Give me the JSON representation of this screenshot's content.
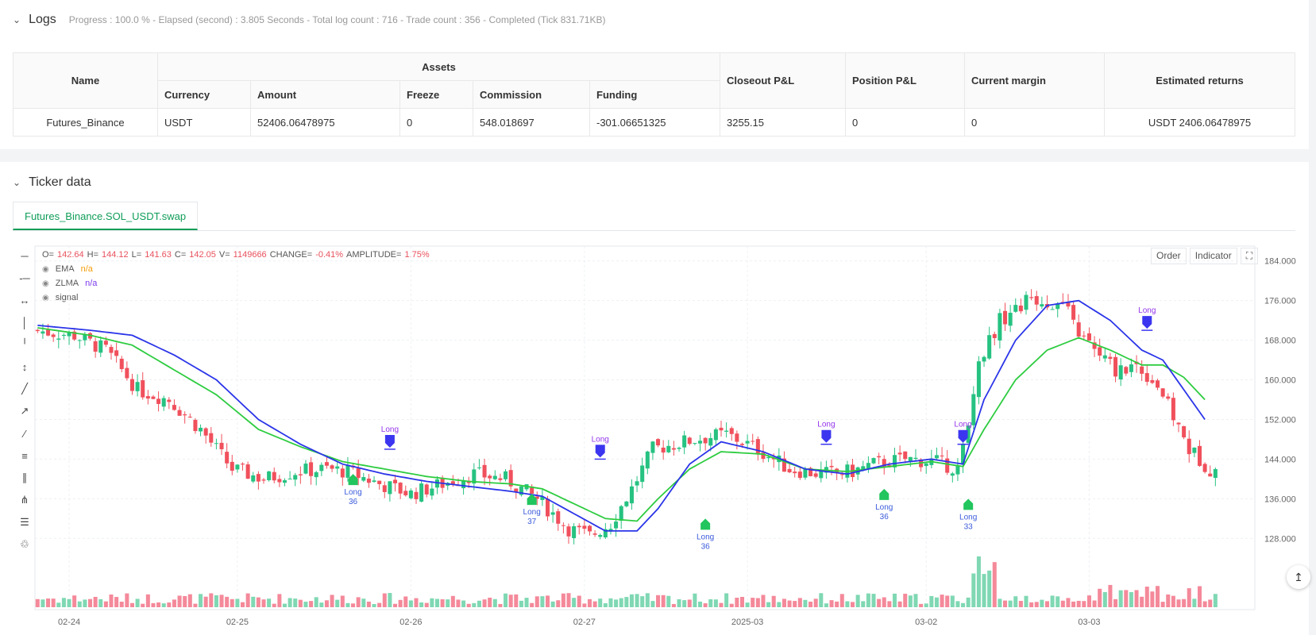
{
  "logs": {
    "title": "Logs",
    "meta": "Progress : 100.0 % - Elapsed (second) : 3.805  Seconds - Total log count : 716 - Trade count : 356 - Completed (Tick 831.71KB)"
  },
  "assets_table": {
    "headers": {
      "name": "Name",
      "assets": "Assets",
      "currency": "Currency",
      "amount": "Amount",
      "freeze": "Freeze",
      "commission": "Commission",
      "funding": "Funding",
      "closeout": "Closeout P&L",
      "position": "Position P&L",
      "margin": "Current margin",
      "returns": "Estimated returns"
    },
    "row": {
      "name": "Futures_Binance",
      "currency": "USDT",
      "amount": "52406.06478975",
      "freeze": "0",
      "commission": "548.018697",
      "funding": "-301.06651325",
      "closeout": "3255.15",
      "position": "0",
      "margin": "0",
      "returns": "USDT 2406.06478975"
    }
  },
  "ticker": {
    "title": "Ticker data",
    "tab": "Futures_Binance.SOL_USDT.swap"
  },
  "chart_ui": {
    "ohlc": {
      "o_label": "O=",
      "o": "142.64",
      "h_label": "H=",
      "h": "144.12",
      "l_label": "L=",
      "l": "141.63",
      "c_label": "C=",
      "c": "142.05",
      "v_label": "V=",
      "v": "1149666",
      "change_label": "CHANGE=",
      "change": "-0.41%",
      "amp_label": "AMPLITUDE=",
      "amp": "1.75%"
    },
    "indicators": [
      {
        "name": "EMA",
        "value": "n/a",
        "color": "#f59e0b"
      },
      {
        "name": "ZLMA",
        "value": "n/a",
        "color": "#7c3aed"
      },
      {
        "name": "signal",
        "value": "",
        "color": "#555555"
      }
    ],
    "buttons": {
      "order": "Order",
      "indicator": "Indicator"
    },
    "toolbar_icons": [
      "horizontal-line-icon",
      "horizontal-ray-icon",
      "extended-line-icon",
      "vertical-line-icon",
      "vertical-ray-icon",
      "vertical-segment-icon",
      "trend-line-icon",
      "ray-icon",
      "segment-icon",
      "measure-icon",
      "parallel-channel-icon",
      "pitchfork-icon",
      "layers-icon",
      "trash-icon"
    ]
  },
  "chart_data": {
    "type": "candlestick",
    "y_ticks": [
      "184.000",
      "176.000",
      "168.000",
      "160.000",
      "152.000",
      "144.000",
      "136.000",
      "128.000"
    ],
    "ylim": [
      121,
      187
    ],
    "x_ticks": [
      "02-24",
      "02-25",
      "02-26",
      "02-27",
      "2025-03",
      "03-02",
      "03-03"
    ],
    "price_path": [
      [
        0,
        170
      ],
      [
        8,
        169
      ],
      [
        14,
        166
      ],
      [
        20,
        158
      ],
      [
        26,
        156
      ],
      [
        32,
        150
      ],
      [
        38,
        142
      ],
      [
        44,
        140
      ],
      [
        50,
        141.5
      ],
      [
        56,
        142
      ],
      [
        60,
        141.5
      ],
      [
        66,
        139
      ],
      [
        72,
        137
      ],
      [
        78,
        139
      ],
      [
        84,
        141
      ],
      [
        90,
        140
      ],
      [
        96,
        136
      ],
      [
        102,
        130
      ],
      [
        106,
        128.5
      ],
      [
        110,
        131
      ],
      [
        114,
        138
      ],
      [
        118,
        146
      ],
      [
        126,
        148
      ],
      [
        132,
        149
      ],
      [
        138,
        146
      ],
      [
        144,
        142
      ],
      [
        150,
        141
      ],
      [
        156,
        141.5
      ],
      [
        160,
        143
      ],
      [
        166,
        144
      ],
      [
        172,
        143.5
      ],
      [
        176,
        142
      ],
      [
        178,
        150
      ],
      [
        180,
        164
      ],
      [
        184,
        172
      ],
      [
        190,
        176.5
      ],
      [
        196,
        175
      ],
      [
        200,
        168
      ],
      [
        206,
        162
      ],
      [
        210,
        163
      ],
      [
        214,
        159
      ],
      [
        220,
        146
      ],
      [
        224,
        142
      ]
    ],
    "ema_path": [
      [
        0,
        170.5
      ],
      [
        10,
        169
      ],
      [
        18,
        167
      ],
      [
        26,
        162
      ],
      [
        34,
        157
      ],
      [
        42,
        150
      ],
      [
        50,
        146.5
      ],
      [
        58,
        143.5
      ],
      [
        66,
        142
      ],
      [
        74,
        140.5
      ],
      [
        82,
        139.5
      ],
      [
        90,
        139
      ],
      [
        96,
        138
      ],
      [
        102,
        135
      ],
      [
        108,
        132
      ],
      [
        114,
        131.5
      ],
      [
        118,
        136
      ],
      [
        124,
        142
      ],
      [
        130,
        145.5
      ],
      [
        138,
        145
      ],
      [
        146,
        142
      ],
      [
        154,
        141.5
      ],
      [
        162,
        142.5
      ],
      [
        170,
        143.5
      ],
      [
        176,
        142.5
      ],
      [
        180,
        150
      ],
      [
        186,
        160
      ],
      [
        192,
        166
      ],
      [
        198,
        168.5
      ],
      [
        204,
        166
      ],
      [
        210,
        163
      ],
      [
        214,
        163
      ],
      [
        218,
        160.5
      ],
      [
        222,
        156
      ]
    ],
    "zlma_path": [
      [
        0,
        171
      ],
      [
        10,
        170
      ],
      [
        18,
        169
      ],
      [
        26,
        165
      ],
      [
        34,
        160
      ],
      [
        42,
        152
      ],
      [
        50,
        147
      ],
      [
        58,
        143
      ],
      [
        66,
        141
      ],
      [
        74,
        139.5
      ],
      [
        82,
        138.5
      ],
      [
        90,
        137.5
      ],
      [
        96,
        136.5
      ],
      [
        102,
        133
      ],
      [
        108,
        129.5
      ],
      [
        114,
        129.5
      ],
      [
        118,
        134
      ],
      [
        124,
        143
      ],
      [
        130,
        147.5
      ],
      [
        138,
        145.5
      ],
      [
        146,
        142
      ],
      [
        154,
        141
      ],
      [
        162,
        143
      ],
      [
        170,
        144
      ],
      [
        176,
        143
      ],
      [
        180,
        156
      ],
      [
        186,
        168
      ],
      [
        192,
        175
      ],
      [
        198,
        176
      ],
      [
        204,
        172
      ],
      [
        210,
        166
      ],
      [
        214,
        164
      ],
      [
        218,
        158
      ],
      [
        222,
        152
      ]
    ],
    "signals": [
      {
        "type": "buy",
        "label": "Long",
        "qty": "36",
        "bar": 60,
        "price": 141
      },
      {
        "type": "sell",
        "label": "Long",
        "bar": 67,
        "price": 146
      },
      {
        "type": "buy",
        "label": "Long",
        "qty": "37",
        "bar": 94,
        "price": 137
      },
      {
        "type": "sell",
        "label": "Long",
        "bar": 107,
        "price": 144
      },
      {
        "type": "buy",
        "label": "Long",
        "qty": "36",
        "bar": 127,
        "price": 132
      },
      {
        "type": "sell",
        "label": "Long",
        "bar": 150,
        "price": 147
      },
      {
        "type": "buy",
        "label": "Long",
        "qty": "36",
        "bar": 161,
        "price": 138
      },
      {
        "type": "buy",
        "label": "Long",
        "qty": "33",
        "bar": 177,
        "price": 136
      },
      {
        "type": "sell",
        "label": "Long",
        "bar": 176,
        "price": 147
      },
      {
        "type": "sell",
        "label": "Long",
        "bar": 211,
        "price": 170
      }
    ],
    "colors": {
      "up": "#26c281",
      "down": "#f0505c",
      "ema": "#2ecc40",
      "zlma": "#2b35e8",
      "buy": "#22c55e",
      "sell": "#3b35f0",
      "signal_text": "#9333ea"
    }
  }
}
